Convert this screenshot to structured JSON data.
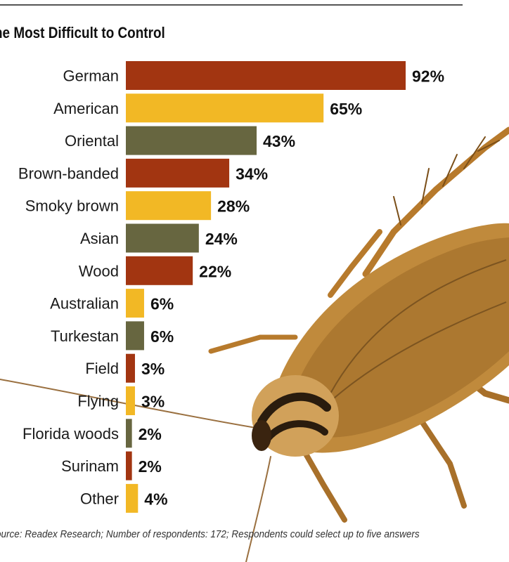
{
  "title": "he Most Difficult to Control",
  "source": "ource: Readex Research; Number of respondents: 172; Respondents could select up to five answers",
  "chart_data": {
    "type": "bar",
    "orientation": "horizontal",
    "title": "he Most Difficult to Control",
    "xlabel": "",
    "ylabel": "",
    "unit": "%",
    "xlim": [
      0,
      92
    ],
    "grid": false,
    "legend": "none",
    "categories": [
      "German",
      "American",
      "Oriental",
      "Brown-banded",
      "Smoky brown",
      "Asian",
      "Wood",
      "Australian",
      "Turkestan",
      "Field",
      "Flying",
      "Florida woods",
      "Surinam",
      "Other"
    ],
    "values": [
      92,
      65,
      43,
      34,
      28,
      24,
      22,
      6,
      6,
      3,
      3,
      2,
      2,
      4
    ],
    "value_labels": [
      "92%",
      "65%",
      "43%",
      "34%",
      "28%",
      "24%",
      "22%",
      "6%",
      "6%",
      "3%",
      "3%",
      "2%",
      "2%",
      "4%"
    ],
    "bar_colors": [
      "#a23511",
      "#f2b825",
      "#676640",
      "#a23511",
      "#f2b825",
      "#676640",
      "#a23511",
      "#f2b825",
      "#676640",
      "#a23511",
      "#f2b825",
      "#676640",
      "#a23511",
      "#f2b825"
    ]
  }
}
